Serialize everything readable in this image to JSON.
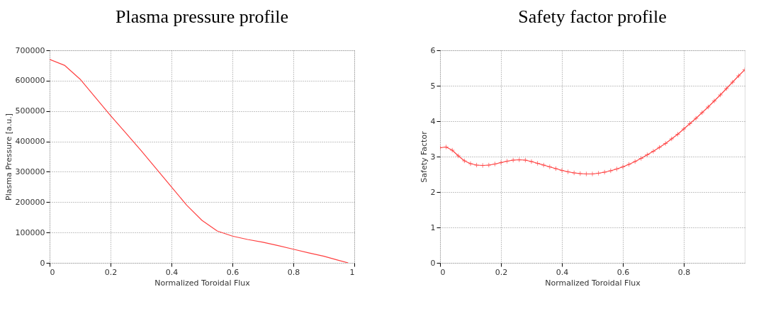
{
  "chart_data": [
    {
      "type": "line",
      "title": "Plasma pressure profile",
      "xlabel": "Normalized Toroidal Flux",
      "ylabel": "Plasma Pressure [a.u.]",
      "xlim": [
        0,
        1
      ],
      "xticks": [
        0,
        0.2,
        0.4,
        0.6,
        0.8,
        1
      ],
      "ylim": [
        0,
        700000
      ],
      "yticks": [
        0,
        100000,
        200000,
        300000,
        400000,
        500000,
        600000,
        700000
      ],
      "grid": true,
      "series": [
        {
          "color": "#ff4040",
          "x": [
            0,
            0.05,
            0.1,
            0.15,
            0.2,
            0.25,
            0.3,
            0.35,
            0.4,
            0.45,
            0.5,
            0.55,
            0.6,
            0.65,
            0.7,
            0.75,
            0.8,
            0.85,
            0.9,
            0.95,
            0.98
          ],
          "values": [
            670000,
            650000,
            605000,
            545000,
            485000,
            428000,
            370000,
            310000,
            250000,
            190000,
            140000,
            105000,
            88000,
            77000,
            68000,
            57000,
            45000,
            33000,
            22000,
            8000,
            0
          ]
        }
      ]
    },
    {
      "type": "line",
      "title": "Safety factor profile",
      "xlabel": "Normalized Toroidal Flux",
      "ylabel": "Safety Factor",
      "marker": "cross",
      "xlim": [
        0,
        1
      ],
      "xticks": [
        0,
        0.2,
        0.4,
        0.6,
        0.8
      ],
      "ylim": [
        0,
        6
      ],
      "yticks": [
        0,
        1,
        2,
        3,
        4,
        5,
        6
      ],
      "grid": true,
      "series": [
        {
          "color": "#ff4040",
          "x": [
            0,
            0.02,
            0.04,
            0.06,
            0.08,
            0.1,
            0.12,
            0.14,
            0.16,
            0.18,
            0.2,
            0.22,
            0.24,
            0.26,
            0.28,
            0.3,
            0.32,
            0.34,
            0.36,
            0.38,
            0.4,
            0.42,
            0.44,
            0.46,
            0.48,
            0.5,
            0.52,
            0.54,
            0.56,
            0.58,
            0.6,
            0.62,
            0.64,
            0.66,
            0.68,
            0.7,
            0.72,
            0.74,
            0.76,
            0.78,
            0.8,
            0.82,
            0.84,
            0.86,
            0.88,
            0.9,
            0.92,
            0.94,
            0.96,
            0.98,
            1.0
          ],
          "values": [
            3.25,
            3.27,
            3.18,
            3.02,
            2.88,
            2.8,
            2.76,
            2.75,
            2.76,
            2.79,
            2.83,
            2.87,
            2.9,
            2.91,
            2.9,
            2.86,
            2.81,
            2.76,
            2.71,
            2.66,
            2.61,
            2.57,
            2.54,
            2.52,
            2.51,
            2.51,
            2.53,
            2.56,
            2.6,
            2.65,
            2.71,
            2.78,
            2.86,
            2.95,
            3.05,
            3.15,
            3.26,
            3.37,
            3.5,
            3.63,
            3.78,
            3.93,
            4.08,
            4.24,
            4.4,
            4.57,
            4.74,
            4.92,
            5.1,
            5.28,
            5.45
          ]
        }
      ]
    }
  ]
}
